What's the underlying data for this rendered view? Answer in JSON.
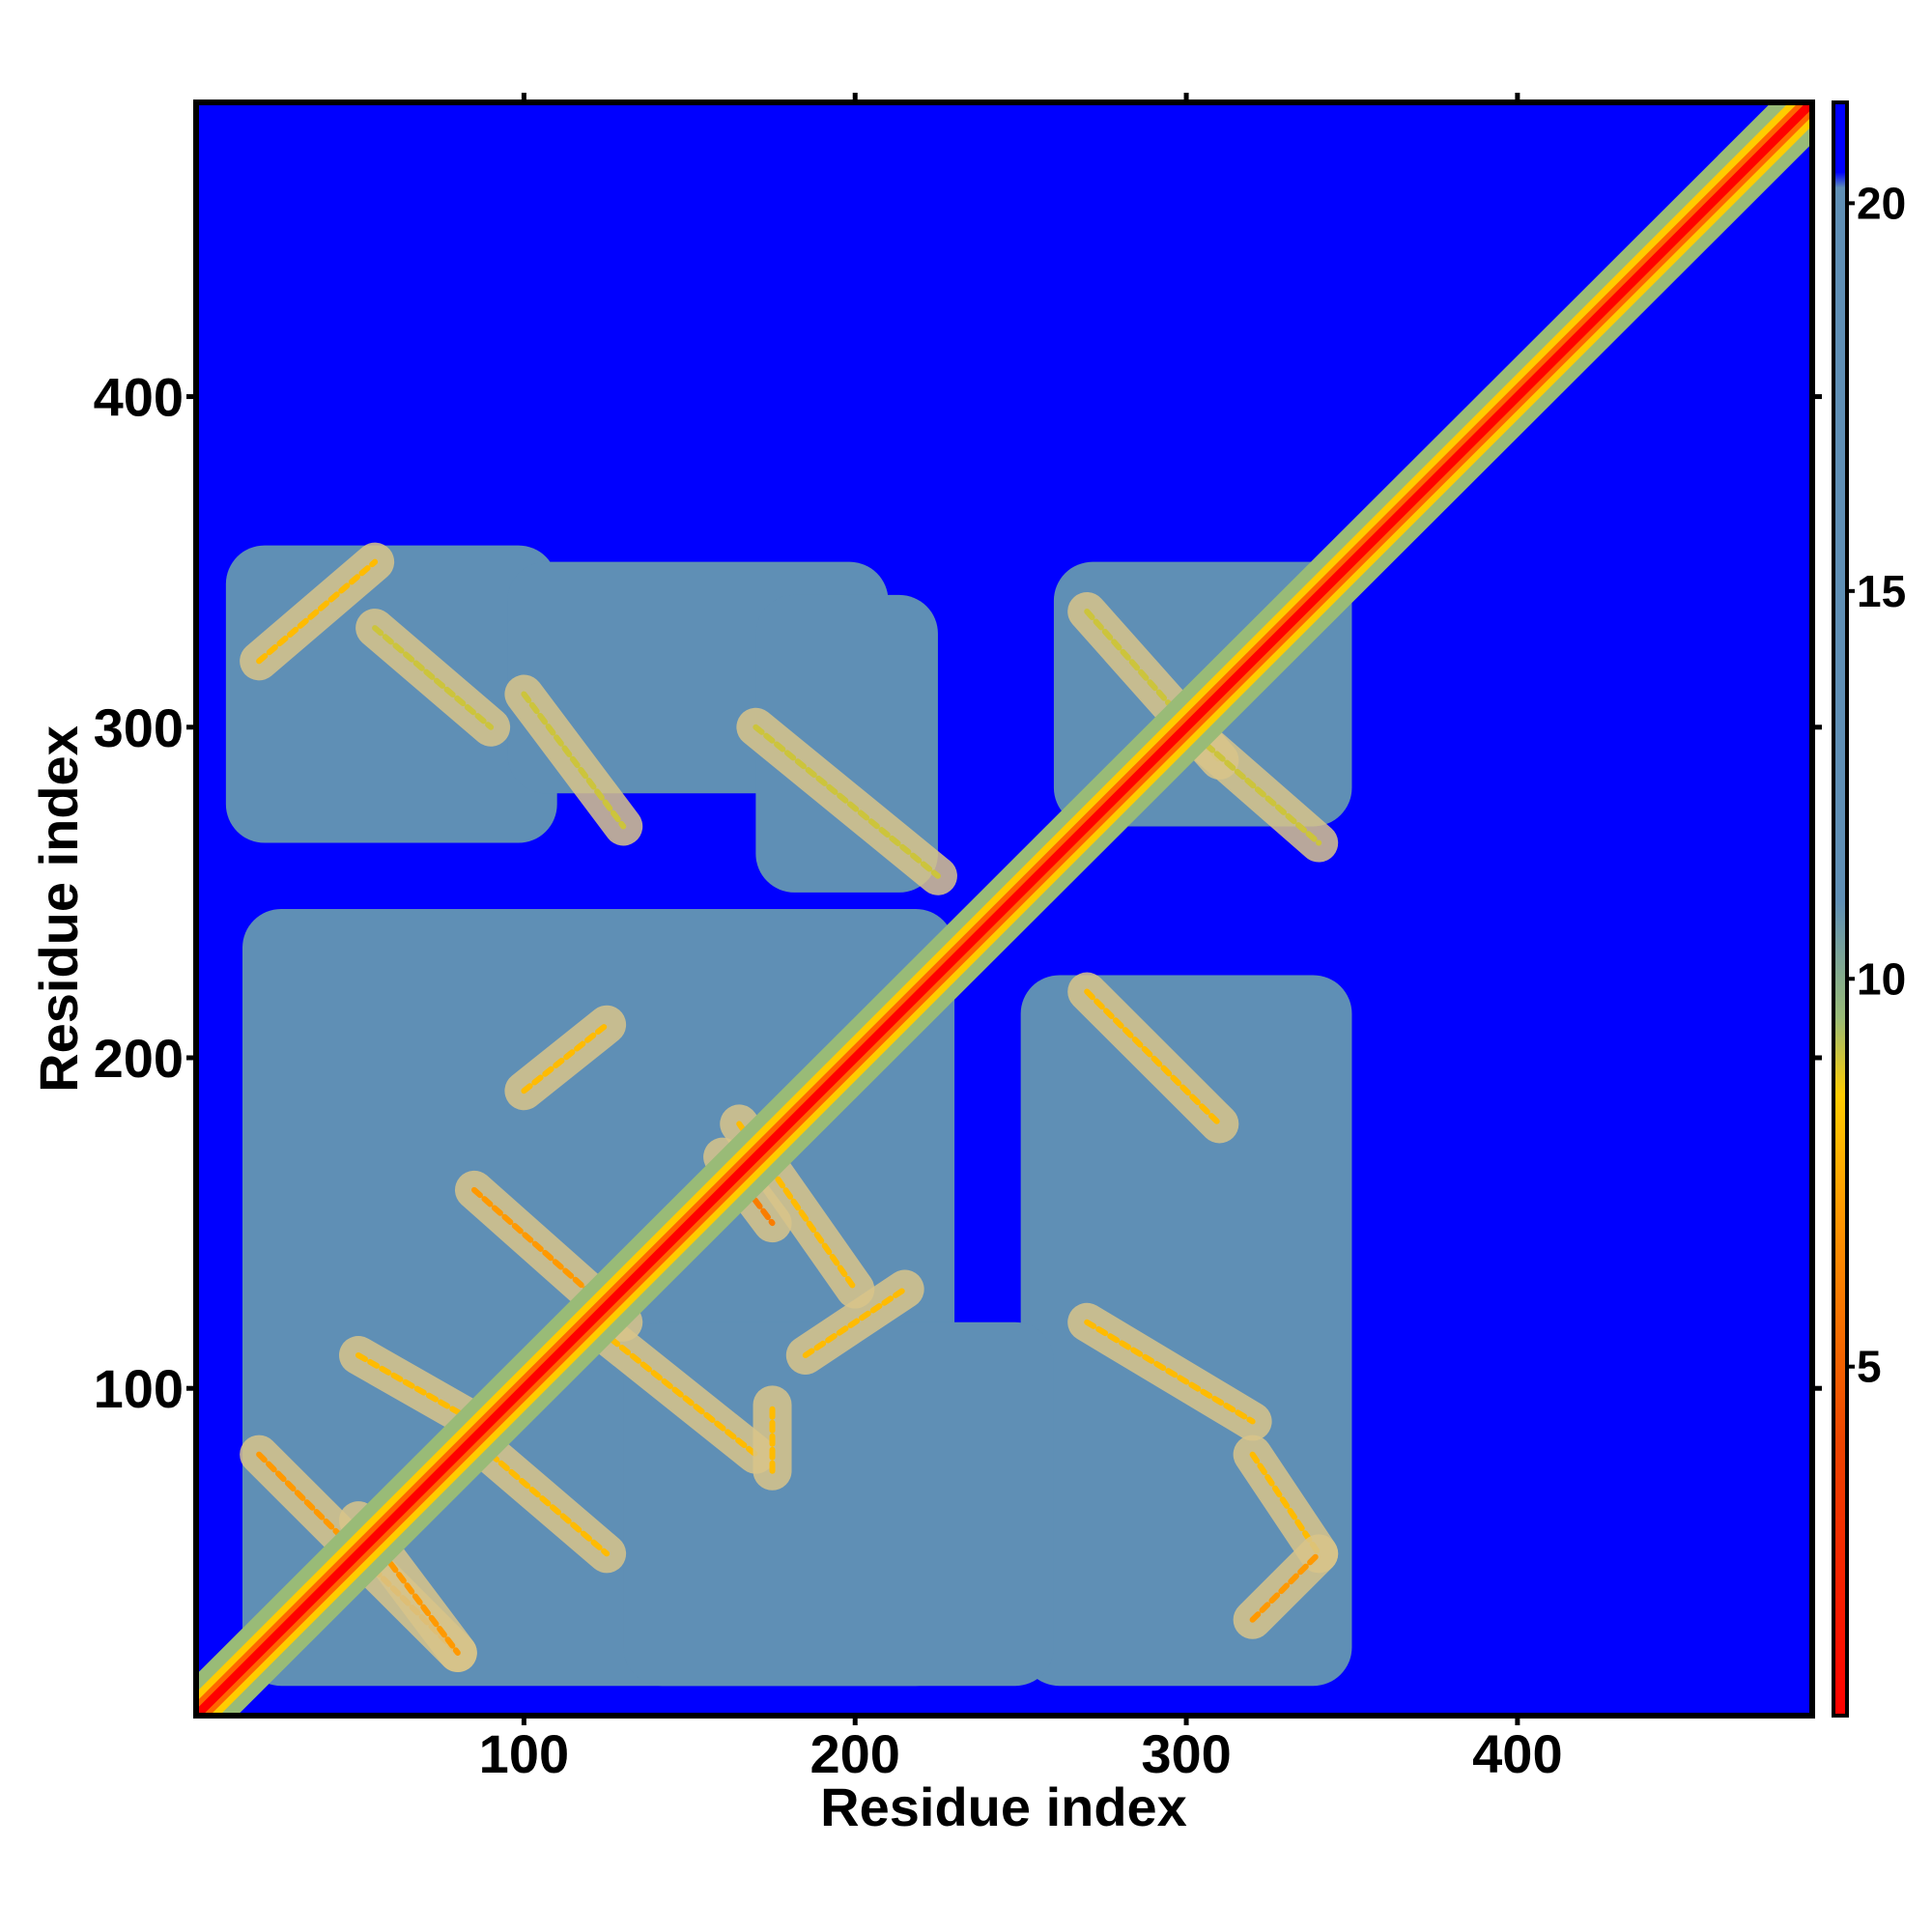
{
  "chart_data": {
    "type": "heatmap",
    "title": "",
    "xlabel": "Residue index",
    "ylabel": "Residue index",
    "xlim": [
      1,
      489
    ],
    "ylim": [
      1,
      489
    ],
    "x_ticks": [
      100,
      200,
      300,
      400
    ],
    "y_ticks": [
      100,
      200,
      300,
      400
    ],
    "colorbar": {
      "ticks": [
        5,
        10,
        15,
        20
      ],
      "range": [
        0.5,
        21.3
      ],
      "stops": [
        {
          "value": 0.5,
          "color": "#ff0000"
        },
        {
          "value": 4.0,
          "color": "#ee4400"
        },
        {
          "value": 7.0,
          "color": "#ff9900"
        },
        {
          "value": 8.5,
          "color": "#ffcc00"
        },
        {
          "value": 9.5,
          "color": "#99bb77"
        },
        {
          "value": 11.0,
          "color": "#5f8fb5"
        },
        {
          "value": 20.2,
          "color": "#5f8fb5"
        },
        {
          "value": 20.4,
          "color": "#0000ff"
        },
        {
          "value": 21.3,
          "color": "#0000ff"
        }
      ]
    },
    "background_value": 21,
    "background_color": "#0000ff",
    "grey_value": 15,
    "grey_color": "#5f8fb5",
    "diagonal": {
      "start": 1,
      "end": 489
    },
    "grey_regions": [
      {
        "x": [
          10,
          110
        ],
        "y": [
          265,
          355
        ]
      },
      {
        "x": [
          95,
          210
        ],
        "y": [
          280,
          350
        ]
      },
      {
        "x": [
          170,
          225
        ],
        "y": [
          250,
          340
        ]
      },
      {
        "x": [
          260,
          350
        ],
        "y": [
          270,
          350
        ]
      },
      {
        "x": [
          15,
          230
        ],
        "y": [
          10,
          245
        ]
      },
      {
        "x": [
          250,
          350
        ],
        "y": [
          10,
          225
        ]
      },
      {
        "x": [
          130,
          260
        ],
        "y": [
          10,
          120
        ]
      }
    ],
    "contact_stripes": [
      {
        "from": [
          20,
          320
        ],
        "to": [
          55,
          350
        ],
        "value": 8
      },
      {
        "from": [
          55,
          330
        ],
        "to": [
          90,
          300
        ],
        "value": 9
      },
      {
        "from": [
          100,
          310
        ],
        "to": [
          130,
          270
        ],
        "value": 9
      },
      {
        "from": [
          170,
          300
        ],
        "to": [
          225,
          255
        ],
        "value": 9
      },
      {
        "from": [
          270,
          335
        ],
        "to": [
          310,
          290
        ],
        "value": 9
      },
      {
        "from": [
          300,
          300
        ],
        "to": [
          340,
          265
        ],
        "value": 9
      },
      {
        "from": [
          20,
          80
        ],
        "to": [
          80,
          20
        ],
        "value": 7
      },
      {
        "from": [
          50,
          60
        ],
        "to": [
          80,
          20
        ],
        "value": 7
      },
      {
        "from": [
          90,
          80
        ],
        "to": [
          125,
          50
        ],
        "value": 8
      },
      {
        "from": [
          85,
          160
        ],
        "to": [
          130,
          120
        ],
        "value": 7
      },
      {
        "from": [
          50,
          110
        ],
        "to": [
          85,
          90
        ],
        "value": 8
      },
      {
        "from": [
          100,
          190
        ],
        "to": [
          125,
          210
        ],
        "value": 8
      },
      {
        "from": [
          120,
          120
        ],
        "to": [
          170,
          80
        ],
        "value": 8
      },
      {
        "from": [
          165,
          180
        ],
        "to": [
          200,
          130
        ],
        "value": 8
      },
      {
        "from": [
          185,
          110
        ],
        "to": [
          215,
          130
        ],
        "value": 8
      },
      {
        "from": [
          160,
          170
        ],
        "to": [
          175,
          150
        ],
        "value": 6
      },
      {
        "from": [
          175,
          75
        ],
        "to": [
          175,
          95
        ],
        "value": 8
      },
      {
        "from": [
          270,
          220
        ],
        "to": [
          310,
          180
        ],
        "value": 8
      },
      {
        "from": [
          270,
          120
        ],
        "to": [
          320,
          90
        ],
        "value": 8
      },
      {
        "from": [
          320,
          80
        ],
        "to": [
          340,
          50
        ],
        "value": 8
      },
      {
        "from": [
          320,
          30
        ],
        "to": [
          340,
          50
        ],
        "value": 7
      }
    ]
  }
}
